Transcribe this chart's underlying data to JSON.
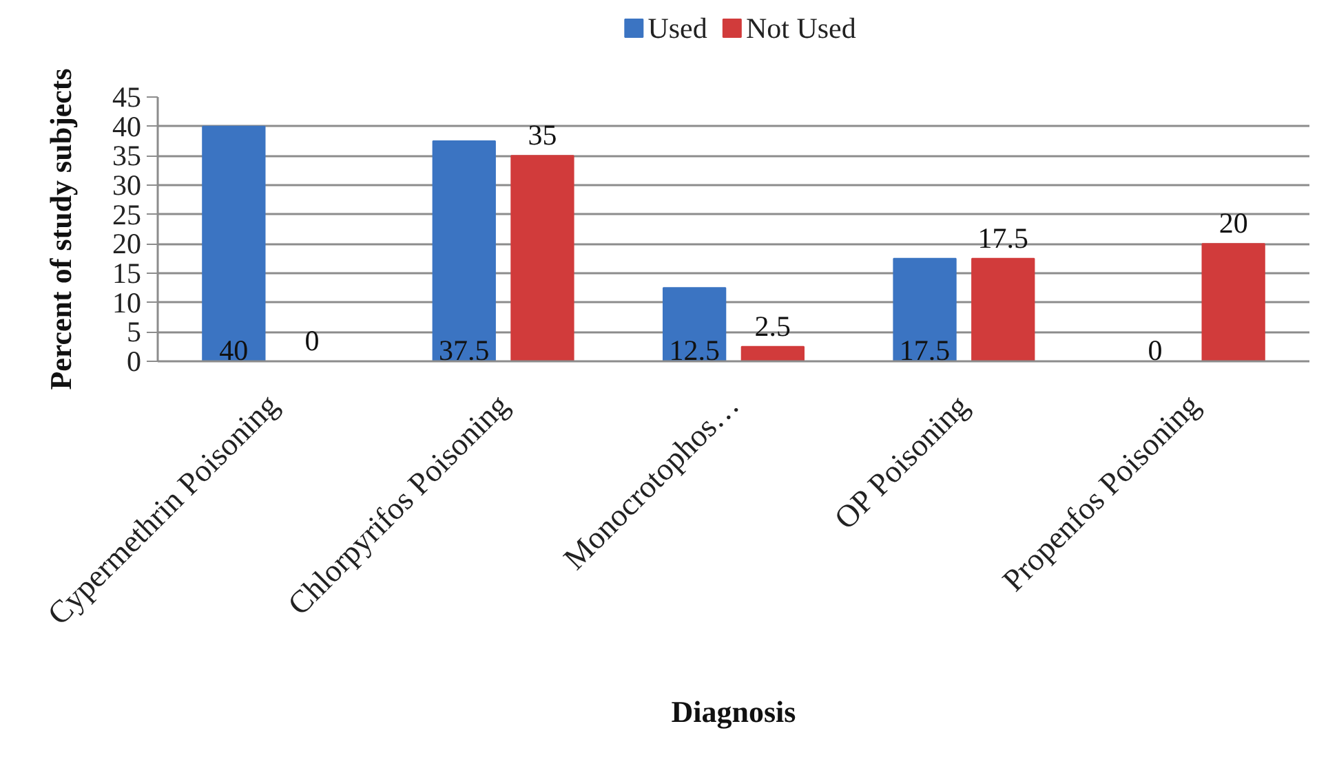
{
  "chart_data": {
    "type": "bar",
    "xlabel": "Diagnosis",
    "ylabel": "Percent of study subjects",
    "categories": [
      "Cypermethrin Poisoning",
      "Chlorpyrifos Poisoning",
      "Monocrotophos…",
      "OP Poisoning",
      "Propenfos Poisoning"
    ],
    "series": [
      {
        "name": "Used",
        "color": "#3b74c2",
        "values": [
          40,
          37.5,
          12.5,
          17.5,
          0
        ]
      },
      {
        "name": "Not Used",
        "color": "#d13b3b",
        "values": [
          0,
          35,
          2.5,
          17.5,
          20
        ]
      }
    ],
    "ylim": [
      0,
      45
    ],
    "yticks": [
      0,
      5,
      10,
      15,
      20,
      25,
      30,
      35,
      40,
      45
    ],
    "grid": "y",
    "legend": "top",
    "data_labels": true
  }
}
